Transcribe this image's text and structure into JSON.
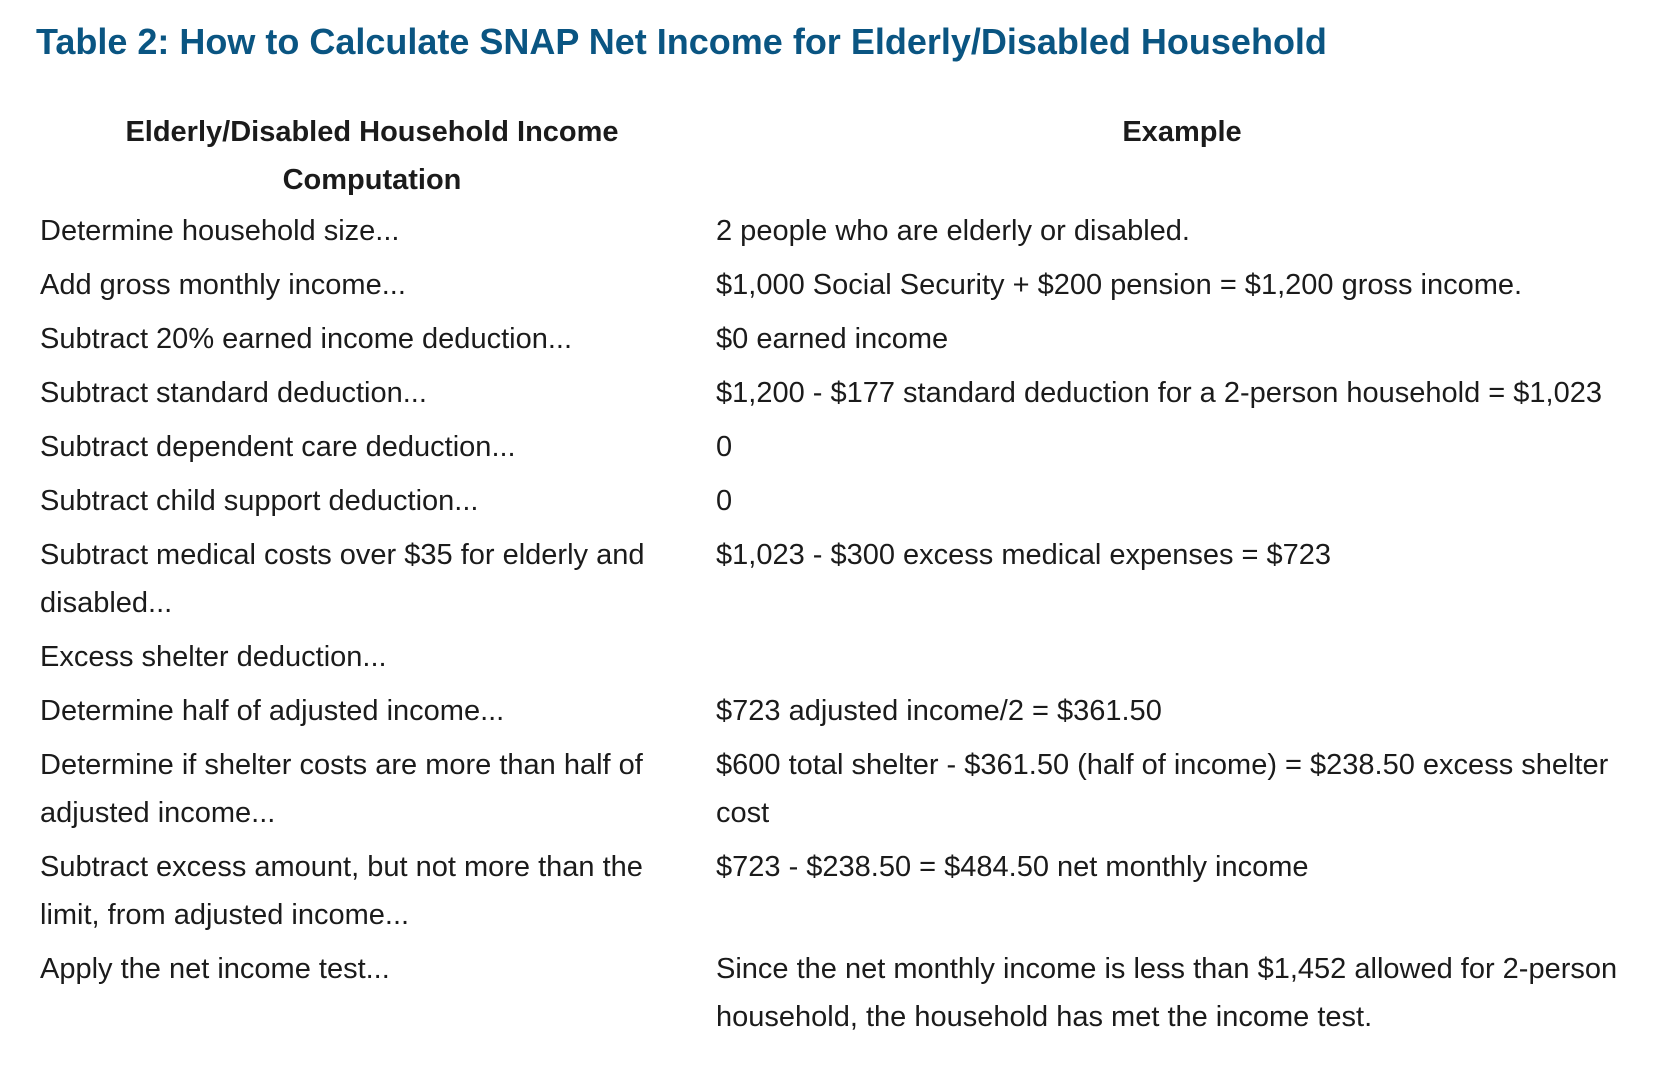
{
  "title": "Table 2: How to Calculate SNAP Net Income for Elderly/Disabled Household",
  "table": {
    "headers": [
      "Elderly/Disabled Household Income Computation",
      "Example"
    ],
    "rows": [
      {
        "step": "Determine household size...",
        "example": "2 people who are elderly or disabled."
      },
      {
        "step": "Add gross monthly income...",
        "example": "$1,000 Social Security + $200 pension = $1,200 gross income."
      },
      {
        "step": "Subtract 20% earned income deduction...",
        "example": "$0 earned income"
      },
      {
        "step": "Subtract standard deduction...",
        "example": "$1,200 - $177 standard deduction for a 2-person household = $1,023"
      },
      {
        "step": "Subtract dependent care deduction...",
        "example": "0"
      },
      {
        "step": "Subtract child support deduction...",
        "example": "0"
      },
      {
        "step": "Subtract medical costs over $35 for elderly and disabled...",
        "example": "$1,023 - $300 excess medical expenses = $723"
      },
      {
        "step": "Excess shelter deduction...",
        "example": ""
      },
      {
        "step": "Determine half of adjusted income...",
        "example": "$723 adjusted income/2 = $361.50"
      },
      {
        "step": "Determine if shelter costs are more than half of adjusted income...",
        "example": "$600 total shelter - $361.50 (half of income) = $238.50 excess shelter cost"
      },
      {
        "step": "Subtract excess amount, but not more than the limit, from adjusted income...",
        "example": "$723 - $238.50 = $484.50 net monthly income"
      },
      {
        "step": "Apply the net income test...",
        "example": "Since the net monthly income is less than $1,452 allowed for 2-person household, the household has met the income test."
      }
    ]
  },
  "colors": {
    "title": "#0a5582",
    "text": "#1b1b1b",
    "background": "#ffffff"
  }
}
